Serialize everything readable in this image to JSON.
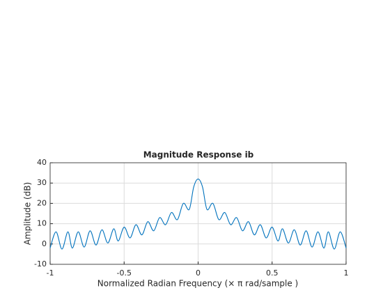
{
  "chart_data": {
    "type": "line",
    "title": "Magnitude Response ib",
    "x_label": "Normalized Radian Frequency (× π rad/sample )",
    "y_label": "Amplitude (dB)",
    "x": [
      -1,
      -0.96,
      -0.92,
      -0.88,
      -0.85,
      -0.81,
      -0.77,
      -0.73,
      -0.69,
      -0.65,
      -0.61,
      -0.57,
      -0.54,
      -0.5,
      -0.46,
      -0.42,
      -0.38,
      -0.34,
      -0.3,
      -0.26,
      -0.22,
      -0.18,
      -0.14,
      -0.1,
      -0.06,
      -0.03,
      0,
      0.03,
      0.06,
      0.1,
      0.14,
      0.18,
      0.22,
      0.26,
      0.3,
      0.34,
      0.38,
      0.42,
      0.46,
      0.5,
      0.54,
      0.57,
      0.61,
      0.65,
      0.69,
      0.73,
      0.77,
      0.81,
      0.85,
      0.88,
      0.92,
      0.96,
      1
    ],
    "series": [
      {
        "color": "#0072bd",
        "values": [
          -2,
          6,
          -2.5,
          6,
          -2,
          6,
          -1.5,
          6.5,
          -0.5,
          7,
          0.5,
          7.5,
          1.5,
          8.3,
          3,
          9.5,
          4.5,
          11,
          6.5,
          13,
          9.5,
          15.5,
          12,
          20,
          17,
          28,
          32,
          28,
          17,
          20,
          12,
          15.5,
          9.5,
          13,
          6.5,
          11,
          4.5,
          9.5,
          3,
          8.3,
          1.5,
          7.5,
          0.5,
          7,
          -0.5,
          6.5,
          -1.5,
          6,
          -2,
          6,
          -2.5,
          6,
          -2
        ]
      }
    ],
    "xlim": [
      -1,
      1
    ],
    "xticks": [
      -1,
      -0.5,
      0,
      0.5,
      1
    ],
    "ylim": [
      -10,
      40
    ],
    "yticks": [
      -10,
      0,
      10,
      20,
      30,
      40
    ],
    "grid": true
  }
}
